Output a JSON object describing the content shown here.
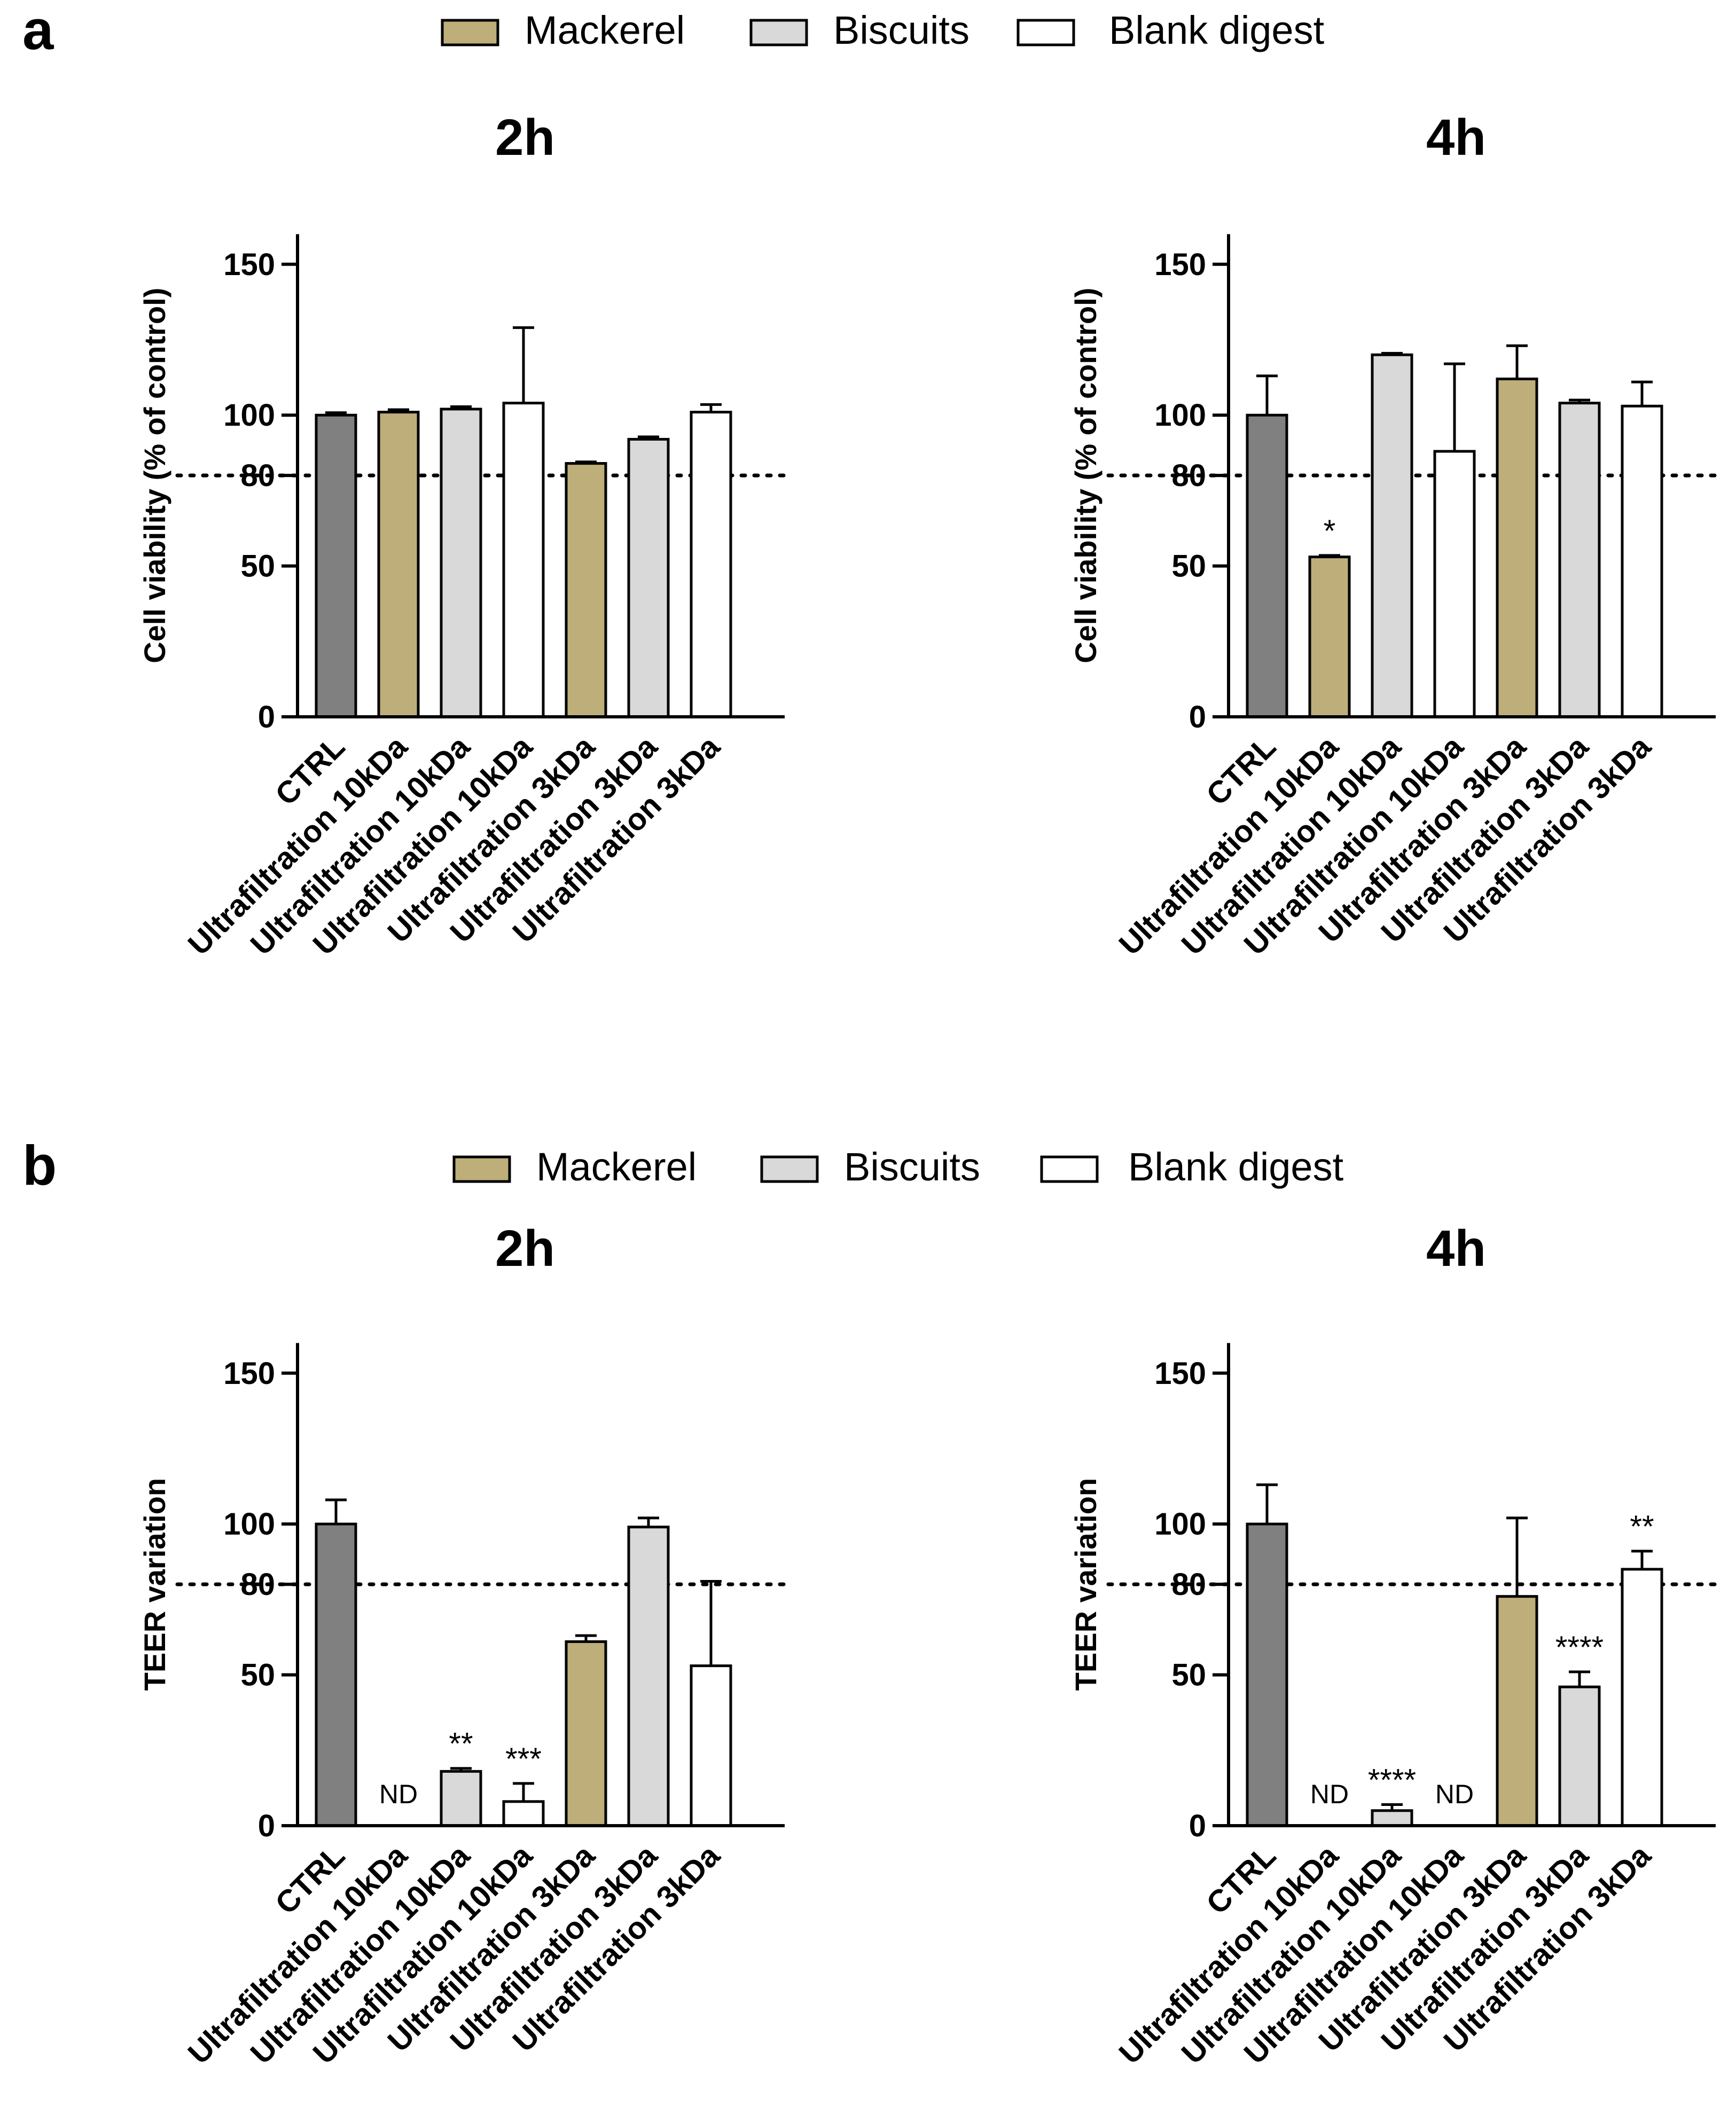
{
  "colors": {
    "ctrl": "#808080",
    "mackerel": "#bdae7a",
    "biscuits": "#d9d9d9",
    "blank": "#ffffff",
    "ink": "#000000"
  },
  "legend": [
    {
      "label": "Mackerel",
      "color": "#bdae7a"
    },
    {
      "label": "Biscuits",
      "color": "#d9d9d9"
    },
    {
      "label": "Blank digest",
      "color": "#ffffff"
    }
  ],
  "panels": [
    {
      "letter": "a"
    },
    {
      "letter": "b"
    }
  ],
  "chart_data": [
    {
      "type": "bar",
      "panel": "a",
      "title": "2h",
      "ylabel": "Cell viability (% of control)",
      "xlabel": "",
      "ylim": [
        0,
        160
      ],
      "yticks": [
        0,
        50,
        80,
        100,
        150
      ],
      "reference_line": 80,
      "categories": [
        "CTRL",
        "Ultrafiltration 10kDa",
        "Ultrafiltration 10kDa",
        "Ultrafiltration 10kDa",
        "Ultrafiltration 3kDa",
        "Ultrafiltration 3kDa",
        "Ultrafiltration 3kDa"
      ],
      "groups": [
        "ctrl",
        "mackerel",
        "biscuits",
        "blank",
        "mackerel",
        "biscuits",
        "blank"
      ],
      "values": [
        100,
        101,
        102,
        104,
        84,
        92,
        101
      ],
      "errors": [
        0.8,
        0.8,
        0.8,
        25,
        0.5,
        0.8,
        2.5
      ],
      "annotations": [
        "",
        "",
        "",
        "",
        "",
        "",
        ""
      ]
    },
    {
      "type": "bar",
      "panel": "a",
      "title": "4h",
      "ylabel": "Cell viability (% of control)",
      "xlabel": "",
      "ylim": [
        0,
        160
      ],
      "yticks": [
        0,
        50,
        80,
        100,
        150
      ],
      "reference_line": 80,
      "categories": [
        "CTRL",
        "Ultrafiltration 10kDa",
        "Ultrafiltration 10kDa",
        "Ultrafiltration 10kDa",
        "Ultrafiltration 3kDa",
        "Ultrafiltration 3kDa",
        "Ultrafiltration 3kDa"
      ],
      "groups": [
        "ctrl",
        "mackerel",
        "biscuits",
        "blank",
        "mackerel",
        "biscuits",
        "blank"
      ],
      "values": [
        100,
        53,
        120,
        88,
        112,
        104,
        103
      ],
      "errors": [
        13,
        0.5,
        0.5,
        29,
        11,
        1,
        8
      ],
      "annotations": [
        "",
        "*",
        "",
        "",
        "",
        "",
        ""
      ]
    },
    {
      "type": "bar",
      "panel": "b",
      "title": "2h",
      "ylabel": "TEER variation",
      "xlabel": "",
      "ylim": [
        0,
        160
      ],
      "yticks": [
        0,
        50,
        80,
        100,
        150
      ],
      "reference_line": 80,
      "categories": [
        "CTRL",
        "Ultrafiltration 10kDa",
        "Ultrafiltration 10kDa",
        "Ultrafiltration 10kDa",
        "Ultrafiltration 3kDa",
        "Ultrafiltration 3kDa",
        "Ultrafiltration 3kDa"
      ],
      "groups": [
        "ctrl",
        "mackerel",
        "biscuits",
        "blank",
        "mackerel",
        "biscuits",
        "blank"
      ],
      "values": [
        100,
        null,
        18,
        8,
        61,
        99,
        53
      ],
      "errors": [
        8,
        0,
        1,
        6,
        2,
        3,
        28
      ],
      "annotations": [
        "",
        "ND",
        "**",
        "***",
        "",
        "",
        ""
      ]
    },
    {
      "type": "bar",
      "panel": "b",
      "title": "4h",
      "ylabel": "TEER variation",
      "xlabel": "",
      "ylim": [
        0,
        160
      ],
      "yticks": [
        0,
        50,
        80,
        100,
        150
      ],
      "reference_line": 80,
      "categories": [
        "CTRL",
        "Ultrafiltration 10kDa",
        "Ultrafiltration 10kDa",
        "Ultrafiltration 10kDa",
        "Ultrafiltration 3kDa",
        "Ultrafiltration 3kDa",
        "Ultrafiltration 3kDa"
      ],
      "groups": [
        "ctrl",
        "mackerel",
        "biscuits",
        "blank",
        "mackerel",
        "biscuits",
        "blank"
      ],
      "values": [
        100,
        null,
        5,
        null,
        76,
        46,
        85
      ],
      "errors": [
        13,
        0,
        2,
        0,
        26,
        5,
        6
      ],
      "annotations": [
        "",
        "ND",
        "****",
        "ND",
        "",
        "****",
        "**"
      ]
    }
  ]
}
